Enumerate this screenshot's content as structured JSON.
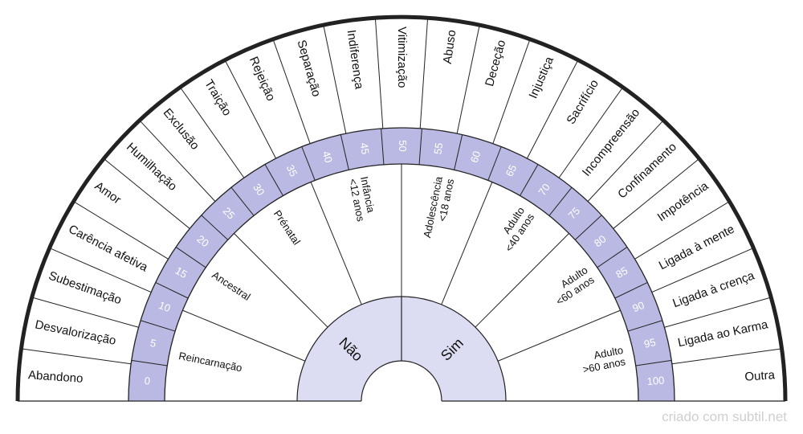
{
  "outer_labels": [
    "Abandono",
    "Desvalorização",
    "Subestimação",
    "Carência afetiva",
    "Amor",
    "Humilhação",
    "Exclusão",
    "Traição",
    "Rejeição",
    "Separação",
    "Indiferença",
    "Vitimização",
    "Abuso",
    "Deceção",
    "Injustiça",
    "Sacrifício",
    "Incompreensão",
    "Confinamento",
    "Impotência",
    "Ligada à mente",
    "Ligada à crença",
    "Ligada ao Karma",
    "Outra"
  ],
  "scale": [
    "0",
    "5",
    "10",
    "15",
    "20",
    "25",
    "30",
    "35",
    "40",
    "45",
    "50",
    "55",
    "60",
    "65",
    "70",
    "75",
    "80",
    "85",
    "90",
    "95",
    "100"
  ],
  "inner_sectors": [
    [
      "Reincarnação"
    ],
    [
      "Ancestral"
    ],
    [
      "Prénatal"
    ],
    [
      "Infância",
      "<12 anos"
    ],
    [
      "Adolescência",
      "<18 anos"
    ],
    [
      "Adulto",
      "<40 anos"
    ],
    [
      "Adulto",
      "<60 anos"
    ],
    [
      "Adulto",
      ">60 anos"
    ]
  ],
  "center_labels": [
    "Não",
    "Sim"
  ],
  "watermark": "criado com subtil.net",
  "colors": {
    "accent": "#b9b9e3",
    "center_fill": "#dcdcf2",
    "line": "#222222",
    "outline": "#000000"
  }
}
